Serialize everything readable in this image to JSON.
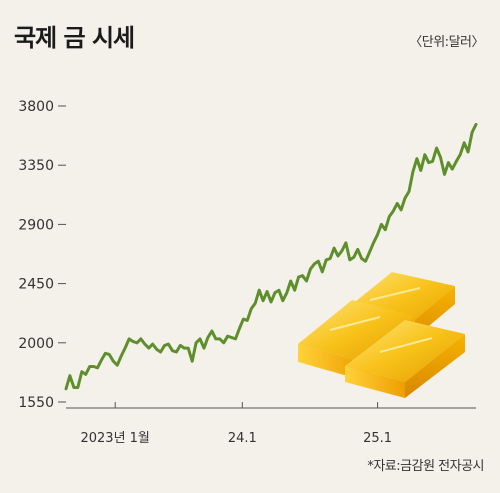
{
  "header": {
    "title": "국제 금 시세",
    "unit": "〈단위:달러〉"
  },
  "footer": {
    "source": "*자료:금감원 전자공시"
  },
  "colors": {
    "line": "#5f8f2c",
    "axis": "#555555",
    "background": "#f4f1ea"
  },
  "chart_data": {
    "type": "line",
    "title": "국제 금 시세",
    "xlabel": "",
    "ylabel": "",
    "unit": "〈단위:달러〉",
    "ylim": [
      1550,
      3800
    ],
    "yticks": [
      1550,
      2000,
      2450,
      2900,
      3350,
      3800
    ],
    "xticks": [
      {
        "label": "2023년 1월",
        "pos": 0.12
      },
      {
        "label": "24.1",
        "pos": 0.43
      },
      {
        "label": "25.1",
        "pos": 0.76
      }
    ],
    "grid": false,
    "legend": "none",
    "series": [
      {
        "values": [
          1650,
          1750,
          1660,
          1660,
          1780,
          1760,
          1820,
          1820,
          1810,
          1870,
          1920,
          1910,
          1860,
          1830,
          1900,
          1960,
          2030,
          2010,
          2000,
          2030,
          1990,
          1960,
          1990,
          1950,
          1930,
          1980,
          1990,
          1940,
          1930,
          1980,
          1960,
          1960,
          1860,
          2000,
          2030,
          1960,
          2040,
          2090,
          2030,
          2030,
          2000,
          2050,
          2040,
          2030,
          2110,
          2180,
          2170,
          2260,
          2300,
          2400,
          2320,
          2390,
          2310,
          2380,
          2400,
          2320,
          2380,
          2470,
          2400,
          2500,
          2510,
          2470,
          2560,
          2600,
          2620,
          2540,
          2630,
          2640,
          2720,
          2660,
          2700,
          2760,
          2630,
          2650,
          2710,
          2640,
          2620,
          2690,
          2760,
          2820,
          2900,
          2860,
          2960,
          3000,
          3060,
          3010,
          3100,
          3150,
          3300,
          3400,
          3310,
          3430,
          3370,
          3380,
          3480,
          3410,
          3280,
          3370,
          3320,
          3380,
          3430,
          3520,
          3450,
          3600,
          3660
        ]
      }
    ]
  }
}
